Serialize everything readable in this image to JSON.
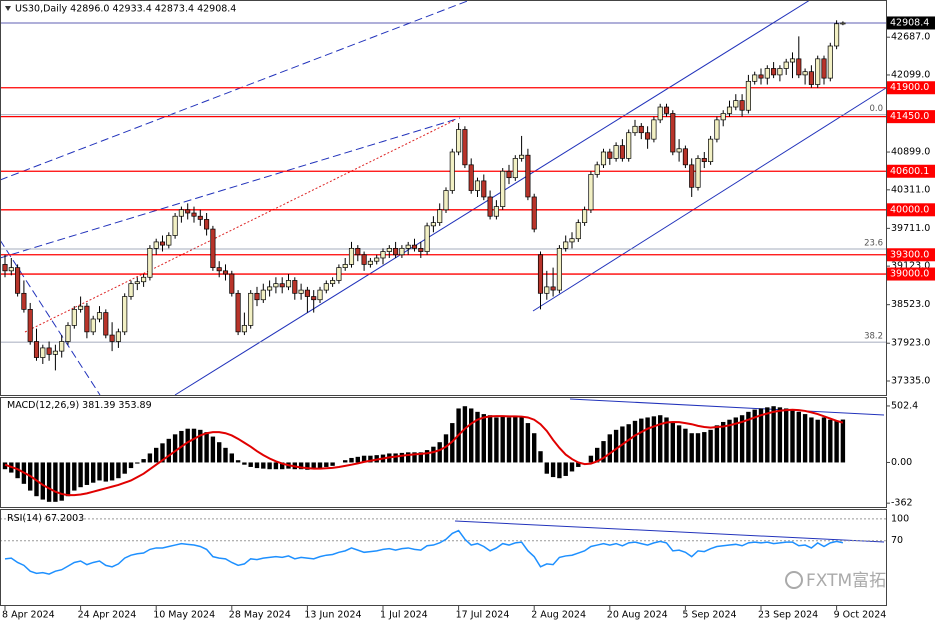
{
  "chart_data": {
    "type": "candlestick",
    "header": "US30,Daily  42896.0 42933.4 42873.4 42908.4",
    "categories": [
      "8 Apr 2024",
      null,
      null,
      null,
      null,
      null,
      null,
      null,
      null,
      null,
      null,
      null,
      "24 Apr 2024",
      null,
      null,
      null,
      null,
      null,
      null,
      null,
      null,
      null,
      null,
      null,
      "10 May 2024",
      null,
      null,
      null,
      null,
      null,
      null,
      null,
      null,
      null,
      null,
      null,
      "28 May 2024",
      null,
      null,
      null,
      null,
      null,
      null,
      null,
      null,
      null,
      null,
      null,
      "13 Jun 2024",
      null,
      null,
      null,
      null,
      null,
      null,
      null,
      null,
      null,
      null,
      null,
      "1 Jul 2024",
      null,
      null,
      null,
      null,
      null,
      null,
      null,
      null,
      null,
      null,
      null,
      "17 Jul 2024",
      null,
      null,
      null,
      null,
      null,
      null,
      null,
      null,
      null,
      null,
      null,
      "2 Aug 2024",
      null,
      null,
      null,
      null,
      null,
      null,
      null,
      null,
      null,
      null,
      null,
      "20 Aug 2024",
      null,
      null,
      null,
      null,
      null,
      null,
      null,
      null,
      null,
      null,
      null,
      "5 Sep 2024",
      null,
      null,
      null,
      null,
      null,
      null,
      null,
      null,
      null,
      null,
      null,
      "23 Sep 2024",
      null,
      null,
      null,
      null,
      null,
      null,
      null,
      null,
      null,
      null,
      null,
      "9 Oct 2024",
      null
    ],
    "candles": [
      [
        39150,
        39300,
        38950,
        39050
      ],
      [
        39050,
        39250,
        38980,
        39100
      ],
      [
        39100,
        39150,
        38650,
        38700
      ],
      [
        38700,
        38900,
        38400,
        38450
      ],
      [
        38450,
        38550,
        37900,
        37950
      ],
      [
        37950,
        38150,
        37650,
        37700
      ],
      [
        37700,
        37900,
        37600,
        37850
      ],
      [
        37850,
        37950,
        37650,
        37750
      ],
      [
        37750,
        37900,
        37500,
        37800
      ],
      [
        37800,
        38050,
        37700,
        37950
      ],
      [
        37950,
        38250,
        37900,
        38200
      ],
      [
        38200,
        38500,
        38150,
        38450
      ],
      [
        38450,
        38650,
        38400,
        38500
      ],
      [
        38500,
        38550,
        38000,
        38100
      ],
      [
        38100,
        38350,
        38050,
        38300
      ],
      [
        38300,
        38500,
        38250,
        38400
      ],
      [
        38400,
        38450,
        38000,
        38050
      ],
      [
        38050,
        38250,
        37800,
        37950
      ],
      [
        37950,
        38150,
        37850,
        38100
      ],
      [
        38100,
        38700,
        38050,
        38650
      ],
      [
        38650,
        38900,
        38600,
        38850
      ],
      [
        38850,
        38950,
        38750,
        38880
      ],
      [
        38880,
        39000,
        38800,
        38950
      ],
      [
        38950,
        39450,
        38900,
        39400
      ],
      [
        39400,
        39550,
        39300,
        39500
      ],
      [
        39500,
        39600,
        39350,
        39450
      ],
      [
        39450,
        39650,
        39400,
        39600
      ],
      [
        39600,
        39950,
        39550,
        39900
      ],
      [
        39900,
        40050,
        39800,
        40000
      ],
      [
        40000,
        40100,
        39850,
        39950
      ],
      [
        39950,
        40050,
        39800,
        39900
      ],
      [
        39900,
        40000,
        39750,
        39850
      ],
      [
        39850,
        39950,
        39600,
        39700
      ],
      [
        39700,
        39750,
        39050,
        39100
      ],
      [
        39100,
        39200,
        38950,
        39050
      ],
      [
        39050,
        39150,
        38900,
        39000
      ],
      [
        39000,
        39050,
        38650,
        38700
      ],
      [
        38700,
        38750,
        38050,
        38100
      ],
      [
        38100,
        38400,
        38050,
        38200
      ],
      [
        38200,
        38750,
        38150,
        38700
      ],
      [
        38700,
        38800,
        38500,
        38600
      ],
      [
        38600,
        38850,
        38550,
        38750
      ],
      [
        38750,
        38900,
        38650,
        38800
      ],
      [
        38800,
        38950,
        38700,
        38850
      ],
      [
        38850,
        38950,
        38700,
        38800
      ],
      [
        38800,
        39000,
        38750,
        38900
      ],
      [
        38900,
        38950,
        38600,
        38700
      ],
      [
        38700,
        38850,
        38600,
        38750
      ],
      [
        38750,
        38800,
        38400,
        38650
      ],
      [
        38650,
        38750,
        38400,
        38600
      ],
      [
        38600,
        38800,
        38550,
        38750
      ],
      [
        38750,
        38900,
        38700,
        38850
      ],
      [
        38850,
        38950,
        38800,
        38900
      ],
      [
        38900,
        39150,
        38850,
        39100
      ],
      [
        39100,
        39250,
        39050,
        39150
      ],
      [
        39150,
        39500,
        39100,
        39400
      ],
      [
        39400,
        39450,
        39200,
        39300
      ],
      [
        39300,
        39350,
        39050,
        39150
      ],
      [
        39150,
        39250,
        39100,
        39200
      ],
      [
        39200,
        39300,
        39150,
        39250
      ],
      [
        39250,
        39400,
        39150,
        39350
      ],
      [
        39350,
        39450,
        39250,
        39400
      ],
      [
        39400,
        39500,
        39250,
        39300
      ],
      [
        39300,
        39450,
        39250,
        39400
      ],
      [
        39400,
        39500,
        39300,
        39450
      ],
      [
        39450,
        39550,
        39350,
        39400
      ],
      [
        39400,
        39500,
        39250,
        39350
      ],
      [
        39350,
        39800,
        39300,
        39750
      ],
      [
        39750,
        39900,
        39650,
        39800
      ],
      [
        39800,
        40100,
        39750,
        40000
      ],
      [
        40000,
        40350,
        39950,
        40300
      ],
      [
        40300,
        40950,
        40250,
        40900
      ],
      [
        40900,
        41350,
        40850,
        41250
      ],
      [
        41250,
        41300,
        40650,
        40700
      ],
      [
        40700,
        40800,
        40250,
        40300
      ],
      [
        40300,
        40500,
        40200,
        40450
      ],
      [
        40450,
        40550,
        40150,
        40200
      ],
      [
        40200,
        40300,
        39850,
        39900
      ],
      [
        39900,
        40150,
        39850,
        40050
      ],
      [
        40050,
        40650,
        40000,
        40600
      ],
      [
        40600,
        40700,
        40400,
        40500
      ],
      [
        40500,
        40850,
        40450,
        40800
      ],
      [
        40800,
        41150,
        40750,
        40850
      ],
      [
        40850,
        40950,
        40150,
        40200
      ],
      [
        40200,
        40250,
        39650,
        39700
      ],
      [
        39300,
        39350,
        38450,
        38700
      ],
      [
        38700,
        39050,
        38600,
        38800
      ],
      [
        38800,
        39100,
        38650,
        38750
      ],
      [
        38750,
        39450,
        38700,
        39400
      ],
      [
        39400,
        39600,
        39350,
        39500
      ],
      [
        39500,
        39650,
        39400,
        39550
      ],
      [
        39550,
        39850,
        39500,
        39800
      ],
      [
        39800,
        40050,
        39750,
        40000
      ],
      [
        40000,
        40600,
        39950,
        40550
      ],
      [
        40550,
        40750,
        40500,
        40700
      ],
      [
        40700,
        40950,
        40650,
        40900
      ],
      [
        40900,
        40950,
        40700,
        40800
      ],
      [
        40800,
        41050,
        40750,
        41000
      ],
      [
        41000,
        41100,
        40750,
        40800
      ],
      [
        40800,
        41250,
        40750,
        41200
      ],
      [
        41200,
        41400,
        41150,
        41300
      ],
      [
        41300,
        41350,
        41100,
        41200
      ],
      [
        41200,
        41300,
        40950,
        41100
      ],
      [
        41100,
        41450,
        41050,
        41400
      ],
      [
        41400,
        41650,
        41350,
        41600
      ],
      [
        41600,
        41650,
        41450,
        41500
      ],
      [
        41500,
        41550,
        40850,
        40900
      ],
      [
        40900,
        41100,
        40750,
        40950
      ],
      [
        40950,
        41000,
        40650,
        40700
      ],
      [
        40700,
        40800,
        40200,
        40350
      ],
      [
        40350,
        40850,
        40300,
        40800
      ],
      [
        40800,
        40900,
        40650,
        40750
      ],
      [
        40750,
        41150,
        40700,
        41100
      ],
      [
        41100,
        41450,
        41050,
        41400
      ],
      [
        41400,
        41550,
        41300,
        41500
      ],
      [
        41500,
        41700,
        41450,
        41600
      ],
      [
        41600,
        41800,
        41550,
        41700
      ],
      [
        41700,
        41800,
        41450,
        41550
      ],
      [
        41550,
        42100,
        41500,
        42000
      ],
      [
        42000,
        42150,
        41950,
        42100
      ],
      [
        42100,
        42200,
        41950,
        42050
      ],
      [
        42050,
        42250,
        41950,
        42200
      ],
      [
        42200,
        42300,
        42050,
        42100
      ],
      [
        42100,
        42250,
        42000,
        42200
      ],
      [
        42200,
        42350,
        42100,
        42300
      ],
      [
        42300,
        42450,
        42050,
        42350
      ],
      [
        42350,
        42700,
        42050,
        42100
      ],
      [
        42100,
        42200,
        41950,
        42150
      ],
      [
        42150,
        42250,
        41900,
        41950
      ],
      [
        41950,
        42400,
        41900,
        42350
      ],
      [
        42350,
        42400,
        41950,
        42050
      ],
      [
        42050,
        42600,
        42000,
        42550
      ],
      [
        42550,
        42950,
        42500,
        42896
      ],
      [
        42896,
        42933.4,
        42873.4,
        42908.4
      ]
    ],
    "up_color": "#f2f0c4",
    "down_color": "#b8342a",
    "ylim": [
      37117,
      43266
    ],
    "yticks": [
      {
        "value": 42687,
        "label": "42687.0"
      },
      {
        "value": 42099,
        "label": "42099.0"
      },
      {
        "value": 40899,
        "label": "40899.0"
      },
      {
        "value": 40311,
        "label": "40311.0"
      },
      {
        "value": 39711,
        "label": "39711.0"
      },
      {
        "value": 39123,
        "label": "39123.0"
      },
      {
        "value": 38523,
        "label": "38523.0"
      },
      {
        "value": 37923,
        "label": "37923.0"
      },
      {
        "value": 37335,
        "label": "37335.0"
      }
    ],
    "last_price": 42908.4,
    "level_color": "#ff0000",
    "levels": [
      {
        "value": 41900,
        "label": "41900.0"
      },
      {
        "value": 41450,
        "label": "41450.0"
      },
      40600.1,
      {
        "value": 40000,
        "label": "40000.0"
      },
      {
        "value": 39300,
        "label": "39300.0"
      },
      {
        "value": 39000,
        "label": "39000.0"
      }
    ],
    "fib_levels": [
      {
        "text": "0.0",
        "price": 41480
      },
      {
        "text": "23.6",
        "price": 39390
      },
      {
        "text": "38.2",
        "price": 37940
      }
    ],
    "macd": {
      "title": "MACD(12,26,9)",
      "color": "#000000",
      "signal_color": "#e00000",
      "ylim": [
        -396,
        573
      ],
      "yticks": [
        502.4,
        {
          "value": 0,
          "label": "0.00"
        },
        -362
      ],
      "values": [
        -60,
        -90,
        -140,
        -190,
        -250,
        -300,
        -330,
        -350,
        -350,
        -340,
        -300,
        -250,
        -220,
        -200,
        -180,
        -160,
        -170,
        -160,
        -140,
        -100,
        -50,
        -10,
        30,
        80,
        130,
        170,
        210,
        250,
        280,
        300,
        300,
        290,
        270,
        230,
        180,
        130,
        80,
        20,
        -20,
        -40,
        -50,
        -55,
        -60,
        -60,
        -60,
        -55,
        -60,
        -60,
        -65,
        -60,
        -50,
        -40,
        -30,
        0,
        20,
        40,
        50,
        60,
        60,
        65,
        70,
        80,
        80,
        85,
        90,
        90,
        90,
        110,
        140,
        180,
        250,
        350,
        480,
        500,
        480,
        450,
        430,
        420,
        400,
        410,
        400,
        410,
        400,
        350,
        260,
        100,
        -100,
        -130,
        -140,
        -120,
        -80,
        -40,
        0,
        60,
        130,
        190,
        250,
        290,
        320,
        340,
        370,
        390,
        400,
        410,
        420,
        400,
        360,
        330,
        300,
        260,
        260,
        270,
        290,
        330,
        360,
        380,
        400,
        420,
        450,
        470,
        480,
        490,
        500,
        490,
        480,
        470,
        450,
        430,
        400,
        380,
        400,
        380,
        370,
        381.39
      ],
      "signal": [
        -20,
        -40,
        -60,
        -90,
        -120,
        -160,
        -200,
        -230,
        -260,
        -280,
        -290,
        -290,
        -285,
        -275,
        -260,
        -245,
        -230,
        -215,
        -200,
        -180,
        -160,
        -130,
        -100,
        -60,
        -20,
        20,
        60,
        100,
        140,
        180,
        210,
        240,
        260,
        270,
        270,
        260,
        240,
        210,
        175,
        140,
        100,
        65,
        35,
        10,
        -10,
        -25,
        -35,
        -45,
        -50,
        -55,
        -55,
        -52,
        -48,
        -40,
        -30,
        -20,
        -8,
        5,
        15,
        25,
        35,
        45,
        52,
        60,
        66,
        72,
        76,
        82,
        92,
        110,
        140,
        185,
        245,
        300,
        345,
        380,
        400,
        410,
        412,
        412,
        410,
        410,
        408,
        400,
        380,
        340,
        280,
        200,
        130,
        70,
        30,
        0,
        -15,
        -10,
        10,
        40,
        80,
        120,
        160,
        200,
        240,
        270,
        300,
        320,
        340,
        355,
        360,
        358,
        350,
        340,
        325,
        315,
        310,
        315,
        320,
        330,
        345,
        360,
        380,
        400,
        420,
        435,
        450,
        460,
        465,
        468,
        465,
        458,
        445,
        430,
        410,
        390,
        370,
        353.89
      ]
    },
    "rsi": {
      "title": "RSI(14)",
      "color": "#1e90ff",
      "ylim": [
        -20,
        112.3
      ],
      "yticks": [
        100,
        70
      ],
      "values": [
        45,
        46,
        40,
        36,
        28,
        25,
        26,
        24,
        28,
        30,
        35,
        40,
        42,
        37,
        40,
        42,
        36,
        34,
        38,
        46,
        50,
        52,
        53,
        58,
        60,
        60,
        62,
        64,
        66,
        65,
        64,
        62,
        58,
        48,
        46,
        45,
        40,
        36,
        38,
        45,
        44,
        46,
        47,
        48,
        47,
        49,
        45,
        47,
        46,
        45,
        48,
        50,
        51,
        54,
        56,
        60,
        57,
        54,
        55,
        56,
        58,
        59,
        57,
        59,
        60,
        58,
        57,
        63,
        64,
        67,
        72,
        80,
        84,
        72,
        64,
        66,
        62,
        56,
        60,
        66,
        64,
        67,
        68,
        56,
        48,
        34,
        38,
        37,
        47,
        49,
        50,
        53,
        56,
        62,
        64,
        66,
        64,
        66,
        63,
        67,
        68,
        66,
        64,
        67,
        69,
        67,
        56,
        57,
        54,
        48,
        56,
        55,
        59,
        62,
        63,
        64,
        65,
        63,
        67,
        68,
        67,
        68,
        66,
        67,
        68,
        68,
        63,
        64,
        60,
        67,
        62,
        67,
        69,
        67.2003
      ]
    },
    "watermark": "FXTM富拓"
  }
}
